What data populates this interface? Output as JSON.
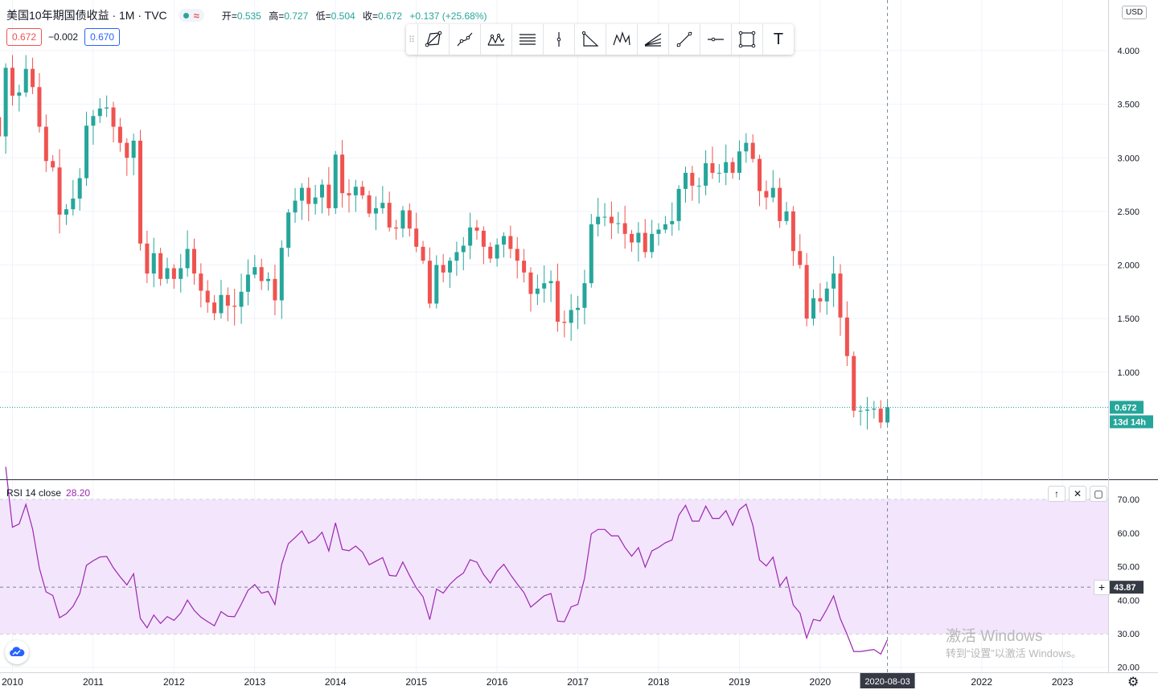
{
  "header": {
    "symbol": "美国10年期国债收益 · 1M · TVC",
    "ohlc": [
      {
        "label": "开",
        "value": "0.535"
      },
      {
        "label": "高",
        "value": "0.727"
      },
      {
        "label": "低",
        "value": "0.504"
      },
      {
        "label": "收",
        "value": "0.672"
      }
    ],
    "change": "+0.137 (+25.68%)",
    "sell_price": "0.672",
    "spread": "−0.002",
    "buy_price": "0.670",
    "currency": "USD"
  },
  "toolbar": {
    "items": [
      "trend-channel-icon",
      "ray-icon",
      "pattern-icon",
      "parallel-lines-icon",
      "vertical-line-icon",
      "fib-icon",
      "head-shoulders-icon",
      "fib-fan-icon",
      "trend-line-icon",
      "horizontal-line-icon",
      "rectangle-icon",
      "text-tool-icon"
    ],
    "text_tool_label": "T"
  },
  "price_axis": {
    "last_price_label": "0.672",
    "countdown_label": "13d 14h"
  },
  "rsi_pane": {
    "title": "RSI 14 close",
    "value": "28.20",
    "crosshair_value": "43.87",
    "btn_up": "↑",
    "btn_close": "✕",
    "btn_max": "▢"
  },
  "time_axis": {
    "crosshair_label": "2020-08-03"
  },
  "watermark": {
    "line1": "激活 Windows",
    "line2": "转到“设置”以激活 Windows。"
  },
  "colors": {
    "up": "#26a69a",
    "down": "#ef5350",
    "rsi_line": "#9c27b0",
    "rsi_band": "#f3e5fc",
    "grid": "#f0f3fa"
  },
  "chart_data": [
    {
      "type": "candlestick",
      "title": "美国10年期国债收益 · 1M · TVC",
      "interval": "1M",
      "start": "2009-09",
      "y_ticks": [
        4.0,
        3.5,
        3.0,
        2.5,
        2.0,
        1.5,
        1.0
      ],
      "ylim": [
        0.0,
        4.26
      ],
      "x_ticks": [
        "2010",
        "2011",
        "2012",
        "2013",
        "2014",
        "2015",
        "2016",
        "2017",
        "2018",
        "2019",
        "2020",
        "2021",
        "2022",
        "2023"
      ],
      "last_price": 0.672,
      "closes": [
        3.31,
        3.38,
        3.2,
        3.84,
        3.58,
        3.61,
        3.83,
        3.66,
        3.29,
        2.97,
        2.91,
        2.47,
        2.52,
        2.62,
        2.81,
        3.3,
        3.39,
        3.46,
        3.47,
        3.29,
        3.14,
        3.0,
        3.16,
        2.2,
        1.92,
        2.11,
        1.87,
        1.97,
        1.87,
        1.97,
        2.15,
        1.92,
        1.76,
        1.65,
        1.55,
        1.72,
        1.62,
        1.61,
        1.75,
        1.91,
        1.98,
        1.85,
        1.87,
        1.67,
        2.16,
        2.49,
        2.6,
        2.72,
        2.57,
        2.63,
        2.75,
        2.53,
        3.03,
        2.67,
        2.65,
        2.73,
        2.65,
        2.48,
        2.53,
        2.58,
        2.35,
        2.34,
        2.51,
        2.34,
        2.17,
        2.04,
        1.64,
        2.0,
        1.93,
        2.04,
        2.12,
        2.18,
        2.35,
        2.32,
        2.17,
        2.06,
        2.19,
        2.27,
        2.15,
        2.04,
        1.93,
        1.73,
        1.78,
        1.83,
        1.85,
        1.47,
        1.46,
        1.58,
        1.6,
        1.83,
        2.38,
        2.45,
        2.45,
        2.39,
        2.39,
        2.29,
        2.21,
        2.3,
        2.12,
        2.29,
        2.33,
        2.38,
        2.41,
        2.71,
        2.86,
        2.74,
        2.74,
        2.95,
        2.86,
        2.86,
        2.96,
        2.86,
        3.06,
        3.14,
        2.99,
        2.69,
        2.63,
        2.72,
        2.41,
        2.5,
        2.13,
        2.0,
        1.5,
        1.69,
        1.66,
        1.78,
        1.92,
        1.51,
        1.15,
        0.64,
        0.64,
        0.65,
        0.66,
        0.53,
        0.672
      ]
    },
    {
      "type": "line",
      "title": "RSI 14 close",
      "current_value": 28.2,
      "y_ticks": [
        70.0,
        60.0,
        50.0,
        40.0,
        30.0,
        20.0
      ],
      "band": [
        30.0,
        70.0
      ],
      "x_ticks": [
        "2010",
        "2011",
        "2012",
        "2013",
        "2014",
        "2015",
        "2016",
        "2017",
        "2018",
        "2019",
        "2020",
        "2021",
        "2022",
        "2023"
      ]
    }
  ]
}
